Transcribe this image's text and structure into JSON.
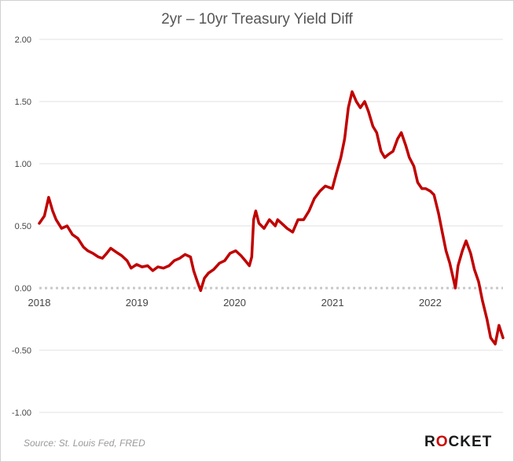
{
  "title": "2yr – 10yr Treasury Yield Diff",
  "source": "Source: St. Louis Fed, FRED",
  "brand": {
    "pre": "R",
    "mid": "O",
    "post": "CKET",
    "accent": "#cc0000"
  },
  "chart_data": {
    "type": "line",
    "title": "2yr – 10yr Treasury Yield Diff",
    "xlabel": "",
    "ylabel": "",
    "xlim": [
      "2018-01-01",
      "2022-09-30"
    ],
    "ylim": [
      -1.0,
      2.0
    ],
    "y_ticks": [
      "2.00",
      "1.50",
      "1.00",
      "0.50",
      "0.00",
      "-0.50",
      "-1.00"
    ],
    "x_ticks": [
      "2018",
      "2019",
      "2020",
      "2021",
      "2022"
    ],
    "grid": true,
    "zero_line": "dotted",
    "line_color": "#c00000",
    "series": [
      {
        "x": [
          "2018-01-01",
          "2018-01-20",
          "2018-02-05",
          "2018-02-20",
          "2018-03-05",
          "2018-03-25",
          "2018-04-15",
          "2018-05-05",
          "2018-05-25",
          "2018-06-15",
          "2018-07-01",
          "2018-07-20",
          "2018-08-10",
          "2018-08-25",
          "2018-09-10",
          "2018-09-25",
          "2018-10-15",
          "2018-11-05",
          "2018-11-25",
          "2018-12-10",
          "2018-12-31",
          "2019-01-20",
          "2019-02-10",
          "2019-03-01",
          "2019-03-20",
          "2019-04-10",
          "2019-05-01",
          "2019-05-20",
          "2019-06-10",
          "2019-06-30",
          "2019-07-20",
          "2019-08-01",
          "2019-08-15",
          "2019-08-27",
          "2019-09-10",
          "2019-09-25",
          "2019-10-15",
          "2019-11-05",
          "2019-11-25",
          "2019-12-15",
          "2020-01-05",
          "2020-01-25",
          "2020-02-10",
          "2020-02-25",
          "2020-03-05",
          "2020-03-12",
          "2020-03-20",
          "2020-04-01",
          "2020-04-20",
          "2020-05-10",
          "2020-06-01",
          "2020-06-10",
          "2020-06-25",
          "2020-07-15",
          "2020-08-05",
          "2020-08-25",
          "2020-09-15",
          "2020-10-05",
          "2020-10-25",
          "2020-11-15",
          "2020-12-05",
          "2020-12-31",
          "2021-01-15",
          "2021-02-01",
          "2021-02-15",
          "2021-03-01",
          "2021-03-15",
          "2021-03-31",
          "2021-04-15",
          "2021-05-01",
          "2021-05-15",
          "2021-06-01",
          "2021-06-15",
          "2021-07-01",
          "2021-07-15",
          "2021-08-01",
          "2021-08-15",
          "2021-09-01",
          "2021-09-15",
          "2021-10-01",
          "2021-10-15",
          "2021-11-01",
          "2021-11-15",
          "2021-12-01",
          "2021-12-15",
          "2022-01-01",
          "2022-01-15",
          "2022-02-01",
          "2022-02-15",
          "2022-03-01",
          "2022-03-15",
          "2022-03-31",
          "2022-04-05",
          "2022-04-15",
          "2022-05-01",
          "2022-05-15",
          "2022-06-01",
          "2022-06-15",
          "2022-07-01",
          "2022-07-15",
          "2022-08-01",
          "2022-08-15",
          "2022-09-01",
          "2022-09-15",
          "2022-09-30"
        ],
        "y": [
          0.52,
          0.58,
          0.73,
          0.62,
          0.55,
          0.48,
          0.5,
          0.43,
          0.4,
          0.33,
          0.3,
          0.28,
          0.25,
          0.24,
          0.28,
          0.32,
          0.29,
          0.26,
          0.22,
          0.16,
          0.19,
          0.17,
          0.18,
          0.14,
          0.17,
          0.16,
          0.18,
          0.22,
          0.24,
          0.27,
          0.25,
          0.14,
          0.05,
          -0.02,
          0.08,
          0.12,
          0.15,
          0.2,
          0.22,
          0.28,
          0.3,
          0.26,
          0.22,
          0.18,
          0.25,
          0.55,
          0.62,
          0.52,
          0.48,
          0.55,
          0.5,
          0.55,
          0.52,
          0.48,
          0.45,
          0.55,
          0.55,
          0.62,
          0.72,
          0.78,
          0.82,
          0.8,
          0.92,
          1.05,
          1.2,
          1.45,
          1.58,
          1.5,
          1.45,
          1.5,
          1.42,
          1.3,
          1.25,
          1.1,
          1.05,
          1.08,
          1.1,
          1.2,
          1.25,
          1.15,
          1.05,
          0.98,
          0.85,
          0.8,
          0.8,
          0.78,
          0.75,
          0.6,
          0.45,
          0.3,
          0.2,
          0.05,
          0.0,
          0.18,
          0.3,
          0.38,
          0.28,
          0.15,
          0.05,
          -0.1,
          -0.25,
          -0.4,
          -0.45,
          -0.3,
          -0.4
        ]
      }
    ]
  }
}
